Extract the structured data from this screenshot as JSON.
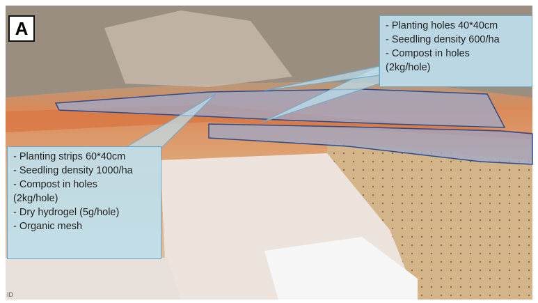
{
  "panel_label": "A",
  "callouts": [
    {
      "lines": [
        "- Planting holes 40*40cm",
        "- Seedling density 600/ha",
        "- Compost in holes",
        "(2kg/hole)"
      ]
    },
    {
      "lines": [
        "- Planting strips 60*40cm",
        "- Seedling density 1000/ha",
        "- Compost in holes",
        "(2kg/hole)",
        "- Dry hydrogel (5g/hole)",
        "- Organic mesh"
      ]
    }
  ],
  "corner_text": "ID"
}
